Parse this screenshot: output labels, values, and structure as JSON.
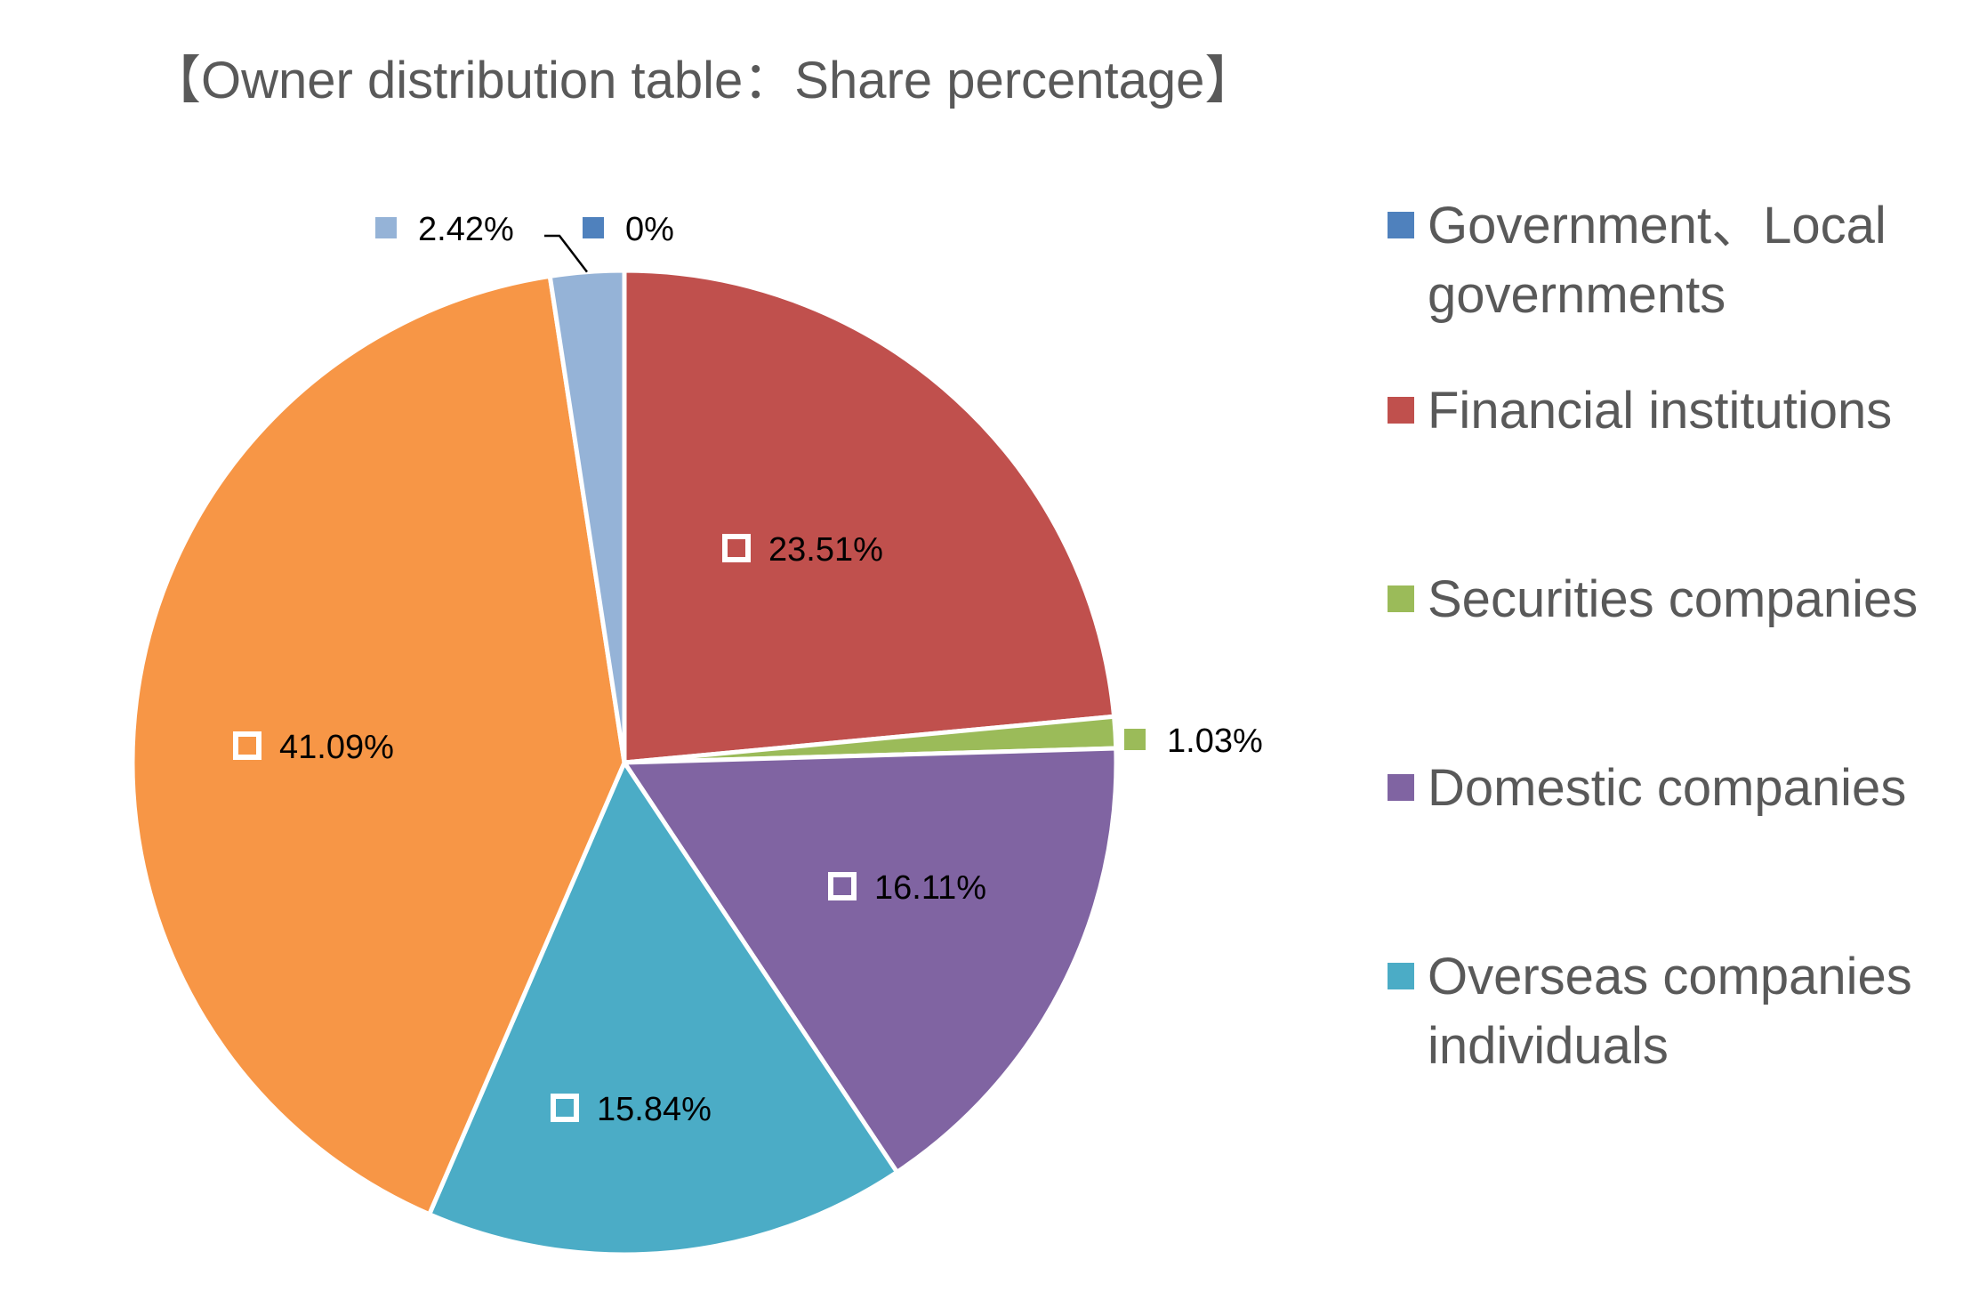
{
  "chart_data": {
    "type": "pie",
    "title": "【Owner distribution table：Share percentage】",
    "categories": [
      "Government、Local governments",
      "Financial institutions",
      "Securities companies",
      "Domestic companies",
      "Overseas companies individuals",
      "",
      ""
    ],
    "values": [
      0,
      23.51,
      1.03,
      16.11,
      15.84,
      41.09,
      2.42
    ],
    "labels": [
      "0%",
      "23.51%",
      "1.03%",
      "16.11%",
      "15.84%",
      "41.09%",
      "2.42%"
    ],
    "colors": [
      "#4f81bd",
      "#c0504d",
      "#9bbb59",
      "#8064a2",
      "#4bacc6",
      "#f79646",
      "#95b3d7"
    ],
    "legend": {
      "position": "right",
      "entries": [
        {
          "lines": [
            "Government、Local",
            "governments"
          ],
          "color": "#4f81bd"
        },
        {
          "lines": [
            "Financial institutions"
          ],
          "color": "#c0504d"
        },
        {
          "lines": [
            "Securities companies"
          ],
          "color": "#9bbb59"
        },
        {
          "lines": [
            "Domestic companies"
          ],
          "color": "#8064a2"
        },
        {
          "lines": [
            "Overseas companies",
            "individuals"
          ],
          "color": "#4bacc6"
        }
      ]
    }
  }
}
